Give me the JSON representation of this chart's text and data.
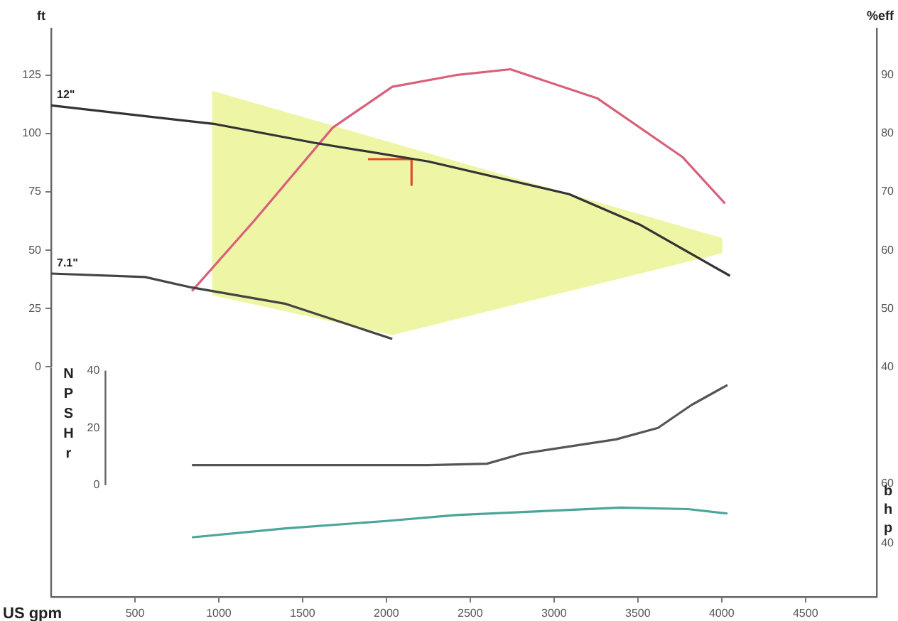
{
  "chart_data": [
    {
      "type": "line",
      "ylabel": "ft",
      "y2label": "%eff",
      "tick_labels": "y",
      "xlim": [
        0,
        4925
      ],
      "xticks": [
        500,
        1000,
        1500,
        2000,
        2500,
        3000,
        3500,
        4000,
        4500
      ],
      "ylim": [
        0,
        145
      ],
      "yticks": [
        0,
        25,
        50,
        75,
        100,
        125
      ],
      "y2lim": [
        40,
        98
      ],
      "y2ticks": [
        40,
        50,
        60,
        70,
        80,
        90
      ],
      "series": [
        {
          "type": "area",
          "color": "#eef6a6",
          "x": [
            960,
            4000,
            4000,
            2040,
            960
          ],
          "values": [
            118,
            55,
            49,
            14,
            31
          ]
        },
        {
          "name": "12\"",
          "color": "#333333",
          "x": [
            0,
            980,
            1570,
            2250,
            3090,
            3510,
            4050
          ],
          "values": [
            112,
            104,
            96,
            88,
            74,
            61,
            39
          ]
        },
        {
          "name": "7.1\"",
          "color": "#444444",
          "x": [
            0,
            560,
            840,
            1400,
            2035
          ],
          "values": [
            40,
            38.5,
            34,
            27,
            12
          ]
        },
        {
          "axis": "y2",
          "color": "#d9607a",
          "x": [
            840,
            1210,
            1680,
            2035,
            2415,
            2740,
            3260,
            3765,
            4020
          ],
          "values": [
            53,
            65,
            81,
            88,
            90,
            91,
            86,
            76,
            68
          ]
        },
        {
          "color": "#d8502a",
          "x": [
            1890,
            2150,
            2150
          ],
          "values": [
            89,
            89,
            78
          ]
        }
      ],
      "legend": false,
      "grid": false,
      "marker": "none"
    },
    {
      "type": "line",
      "xlabel": "US gpm",
      "ylabel": "NPSHr",
      "y2label": "bhp",
      "xlim": [
        0,
        4925
      ],
      "xticks": [
        500,
        1000,
        1500,
        2000,
        2500,
        3000,
        3500,
        4000,
        4500
      ],
      "ylim": [
        -39,
        41
      ],
      "yticks": [
        0,
        20,
        40
      ],
      "y2lim": [
        22,
        99
      ],
      "y2ticks": [
        40,
        60
      ],
      "series": [
        {
          "color": "#555555",
          "x": [
            840,
            2250,
            2600,
            2810,
            3370,
            3620,
            3820,
            4035
          ],
          "values": [
            7,
            7,
            7.5,
            11,
            16,
            20,
            28,
            35
          ]
        },
        {
          "axis": "y2",
          "color": "#4aa59a",
          "x": [
            840,
            1400,
            2000,
            2415,
            3000,
            3400,
            3800,
            4035
          ],
          "values": [
            42,
            45,
            47.5,
            49.5,
            51,
            52,
            51.5,
            50
          ]
        }
      ],
      "legend": false,
      "grid": false,
      "marker": "none"
    }
  ]
}
